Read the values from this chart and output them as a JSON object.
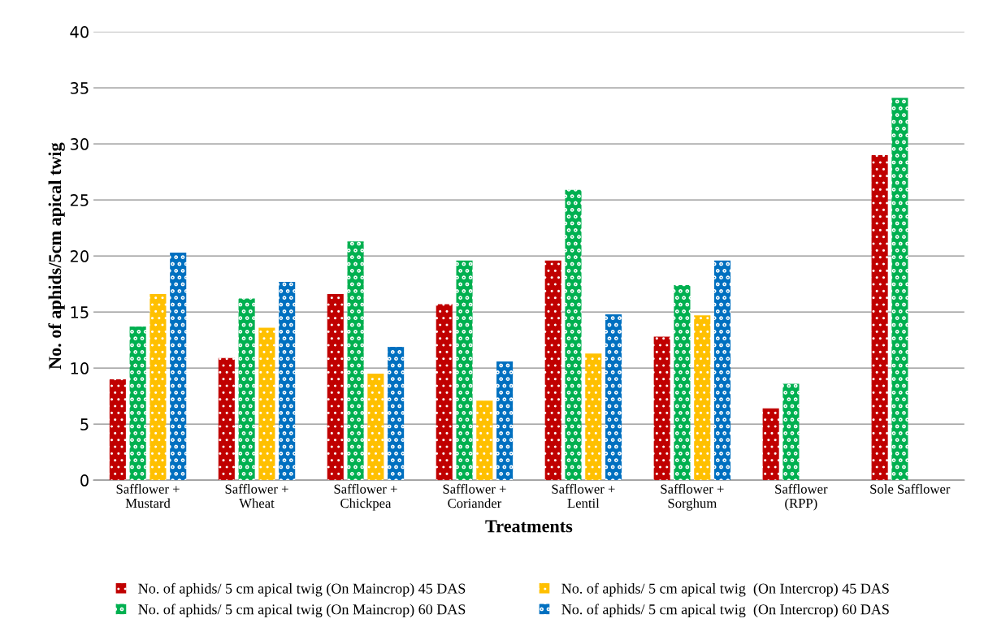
{
  "chart_data": {
    "type": "bar",
    "xlabel": "Treatments",
    "ylabel": "No. of aphids/5cm apical twig",
    "categories": [
      "Safflower +\nMustard",
      "Safflower +\nWheat",
      "Safflower +\nChickpea",
      "Safflower +\nCoriander",
      "Safflower +\nLentil",
      "Safflower +\nSorghum",
      "Safflower\n(RPP)",
      "Sole Safflower"
    ],
    "series": [
      {
        "name": "No. of aphids/ 5 cm apical twig (On Maincrop) 45 DAS",
        "color": "#c00000",
        "values": [
          9.0,
          10.9,
          16.6,
          15.7,
          19.6,
          12.8,
          6.4,
          29.0
        ]
      },
      {
        "name": "No. of aphids/ 5 cm apical twig (On Maincrop) 60 DAS",
        "color": "#00b050",
        "values": [
          13.7,
          16.2,
          21.3,
          19.6,
          25.9,
          17.4,
          8.6,
          34.1
        ]
      },
      {
        "name": "No. of aphids/ 5 cm apical twig  (On Intercrop) 45 DAS",
        "color": "#ffc000",
        "values": [
          16.6,
          13.6,
          9.5,
          7.1,
          11.3,
          14.7,
          null,
          null
        ]
      },
      {
        "name": "No. of aphids/ 5 cm apical twig  (On Intercrop) 60 DAS",
        "color": "#0070c0",
        "values": [
          20.3,
          17.7,
          11.9,
          10.6,
          14.8,
          19.6,
          null,
          null
        ]
      }
    ],
    "ylim": [
      0,
      40
    ],
    "yticks": [
      0,
      5,
      10,
      15,
      20,
      25,
      30,
      35,
      40
    ],
    "grid": "y",
    "legend": "bottom"
  }
}
